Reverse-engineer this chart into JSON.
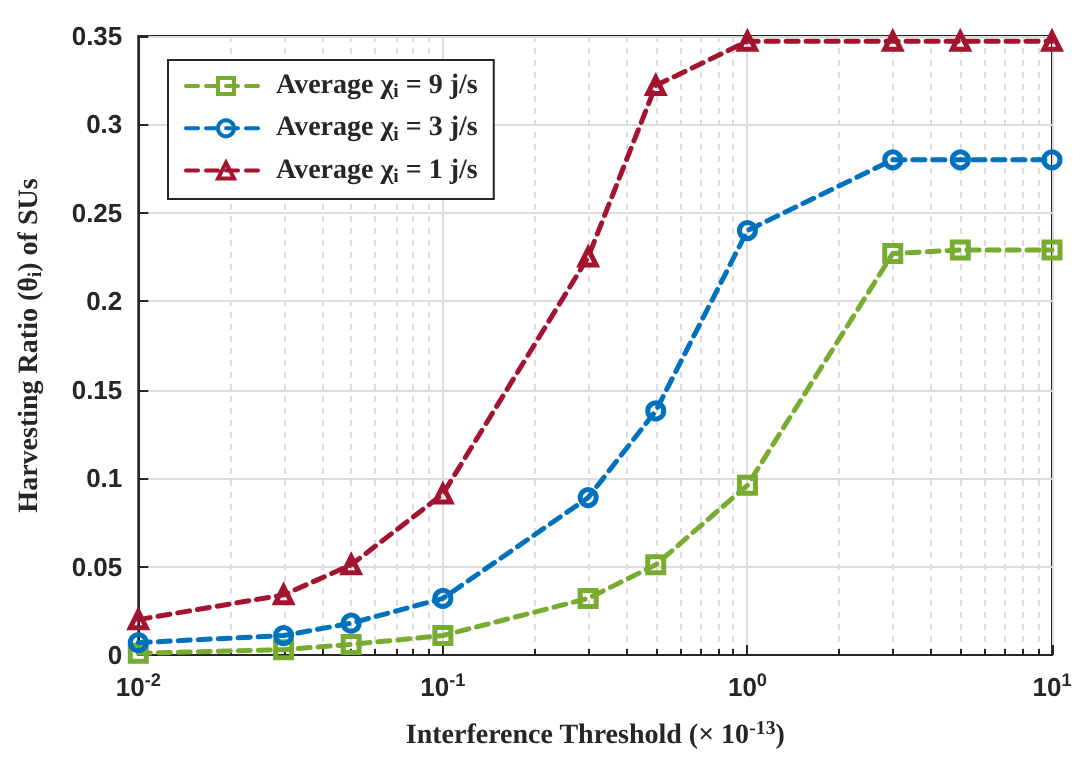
{
  "chart_data": {
    "type": "line",
    "xlabel": "Interference Threshold (× 10$^{-13}$)",
    "ylabel": "Harvesting Ratio (θ$_{i}$) of SUs",
    "x": [
      0.01,
      0.03,
      0.05,
      0.1,
      0.3,
      0.5,
      1,
      3,
      5,
      10
    ],
    "series": [
      {
        "name": "Average χ$_{i}$ = 9 j/s",
        "color": "#77ac30",
        "marker": "square",
        "values": [
          0.001,
          0.003,
          0.006,
          0.011,
          0.032,
          0.051,
          0.096,
          0.227,
          0.229,
          0.229
        ]
      },
      {
        "name": "Average χ$_{i}$ = 3 j/s",
        "color": "#0072bd",
        "marker": "circle",
        "values": [
          0.007,
          0.011,
          0.018,
          0.032,
          0.089,
          0.138,
          0.24,
          0.28,
          0.28,
          0.28
        ]
      },
      {
        "name": "Average χ$_{i}$ = 1 j/s",
        "color": "#a2142f",
        "marker": "triangle",
        "values": [
          0.02,
          0.034,
          0.051,
          0.091,
          0.225,
          0.322,
          0.347,
          0.347,
          0.347,
          0.347
        ]
      }
    ],
    "log": "x",
    "xlim": [
      0.01,
      10
    ],
    "xticks": [
      {
        "value": 0.01,
        "label": "10$^{-2}$"
      },
      {
        "value": 0.1,
        "label": "10$^{-1}$"
      },
      {
        "value": 1,
        "label": "10$^{0}$"
      },
      {
        "value": 10,
        "label": "10$^{1}$"
      }
    ],
    "ylim": [
      0,
      0.35
    ],
    "yticks": [
      0,
      0.05,
      0.1,
      0.15,
      0.2,
      0.25,
      0.3,
      0.35
    ],
    "grid": true,
    "legend": "top left",
    "line_style": "dashed"
  }
}
